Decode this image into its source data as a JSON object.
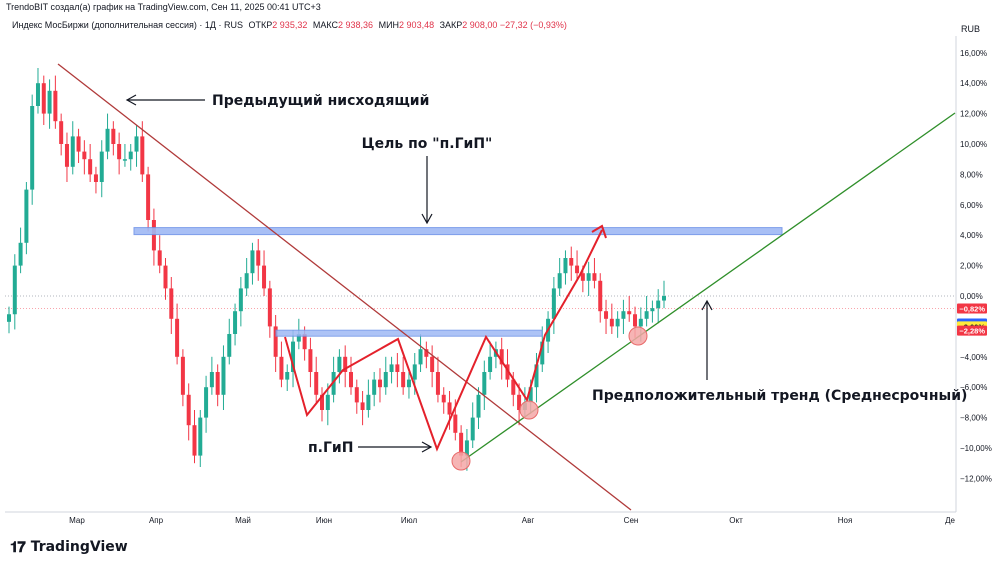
{
  "header": {
    "text": "TrendoBIT создал(а) график на TradingView.com, Сен 11, 2025 00:41 UTC+3"
  },
  "legend": {
    "name": "Индекс МосБиржи (дополнительная сессия) · 1Д · RUS",
    "open_label": "ОТКР",
    "open_value": "2 935,32",
    "high_label": "МАКС",
    "high_value": "2 938,36",
    "low_label": "МИН",
    "low_value": "2 903,48",
    "close_label": "ЗАКР",
    "close_value": "2 908,00",
    "change": "−27,32 (−0,93%)"
  },
  "currency": "RUB",
  "brand": {
    "logo": "𝟏𝟕",
    "name": "TradingView"
  },
  "colors": {
    "up": "#22ab94",
    "down": "#f23645",
    "accent_red": "#e4212b",
    "trend_green": "#2f8f2a",
    "zone_blue": "#9fb9f5",
    "down_trend": "#b03a3a"
  },
  "chart_data": {
    "type": "candlestick",
    "y_unit": "%",
    "ylim": [
      -13.5,
      17.5
    ],
    "y_ticks": [
      16,
      14,
      12,
      10,
      8,
      6,
      4,
      2,
      0,
      -2,
      -4,
      -6,
      -8,
      -10,
      -12
    ],
    "y_tick_labels": [
      "16,00%",
      "14,00%",
      "12,00%",
      "10,00%",
      "8,00%",
      "6,00%",
      "4,00%",
      "2,00%",
      "0,00%",
      "−2,00%",
      "−4,00%",
      "−6,00%",
      "−8,00%",
      "−10,00%",
      "−12,00%"
    ],
    "x_tick_labels": [
      "Мар",
      "Апр",
      "Май",
      "Июн",
      "Июл",
      "Авг",
      "Сен",
      "Окт",
      "Ноя",
      "Де"
    ],
    "price_badges": [
      {
        "text": "−0,82%",
        "bg": "#f23645",
        "fg": "#ffffff",
        "value": -0.82
      },
      {
        "text": "−1,81%",
        "bg": "#2962ff",
        "fg": "#ffffff",
        "value": -1.81
      },
      {
        "text": "−2,00%",
        "bg": "#ffeb3b",
        "fg": "#131722",
        "value": -2.0
      },
      {
        "text": "−2,28%",
        "bg": "#f23645",
        "fg": "#ffffff",
        "value": -2.28
      }
    ],
    "close_series": [
      -1.2,
      2.0,
      3.5,
      7.0,
      12.5,
      14.0,
      12.0,
      13.5,
      11.5,
      10.0,
      8.5,
      10.5,
      9.5,
      9.0,
      8.0,
      7.5,
      9.5,
      11.0,
      10.0,
      9.0,
      9.0,
      9.5,
      10.5,
      8.0,
      5.0,
      3.0,
      2.0,
      0.5,
      -1.5,
      -4.0,
      -6.5,
      -8.5,
      -10.5,
      -8.0,
      -6.0,
      -5.0,
      -6.5,
      -4.0,
      -2.5,
      -1.0,
      0.5,
      1.5,
      3.0,
      2.0,
      0.5,
      -2.0,
      -4.0,
      -5.5,
      -5.0,
      -3.0,
      -2.5,
      -3.5,
      -5.0,
      -6.5,
      -7.5,
      -6.5,
      -5.0,
      -4.0,
      -5.0,
      -6.0,
      -7.0,
      -7.5,
      -6.5,
      -5.5,
      -6.0,
      -5.0,
      -4.5,
      -5.0,
      -6.0,
      -5.5,
      -4.5,
      -3.5,
      -4.0,
      -5.0,
      -6.5,
      -7.0,
      -7.8,
      -9.0,
      -10.5,
      -9.5,
      -8.0,
      -6.5,
      -5.0,
      -4.0,
      -3.5,
      -4.5,
      -5.5,
      -6.5,
      -7.5,
      -7.0,
      -6.0,
      -4.5,
      -3.0,
      -1.5,
      0.5,
      1.5,
      2.5,
      2.0,
      1.5,
      1.0,
      1.5,
      1.0,
      -1.0,
      -1.5,
      -2.0,
      -1.5,
      -1.0,
      -1.2,
      -2.0,
      -1.5,
      -1.0,
      -0.8,
      -0.3,
      0.0
    ],
    "annotations": {
      "prev_downtrend_label": "Предыдущий нисходящий",
      "target_label": "Цель по \"п.ГиП\"",
      "pattern_label": "п.ГиП",
      "trend_label": "Предположительный тренд (Среднесрочный)"
    }
  }
}
